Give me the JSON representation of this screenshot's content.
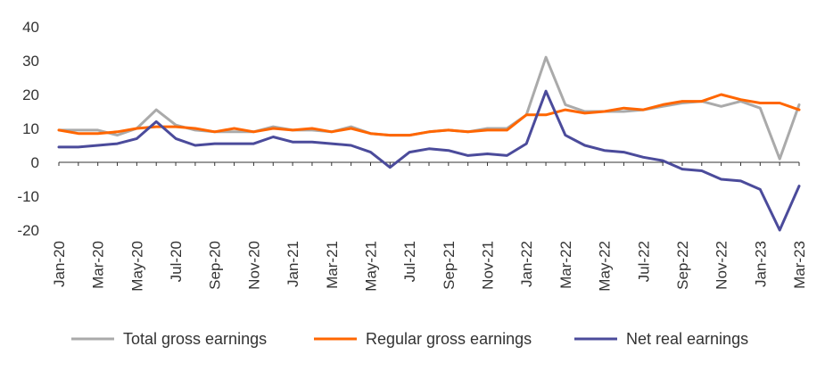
{
  "chart_data": {
    "type": "line",
    "title": "",
    "xlabel": "",
    "ylabel": "",
    "ylim": [
      -20,
      40
    ],
    "yticks": [
      40,
      30,
      20,
      10,
      0,
      -10,
      -20
    ],
    "grid": false,
    "legend_position": "bottom",
    "x": [
      "Jan-20",
      "Feb-20",
      "Mar-20",
      "Apr-20",
      "May-20",
      "Jun-20",
      "Jul-20",
      "Aug-20",
      "Sep-20",
      "Oct-20",
      "Nov-20",
      "Dec-20",
      "Jan-21",
      "Feb-21",
      "Mar-21",
      "Apr-21",
      "May-21",
      "Jun-21",
      "Jul-21",
      "Aug-21",
      "Sep-21",
      "Oct-21",
      "Nov-21",
      "Dec-21",
      "Jan-22",
      "Feb-22",
      "Mar-22",
      "Apr-22",
      "May-22",
      "Jun-22",
      "Jul-22",
      "Aug-22",
      "Sep-22",
      "Oct-22",
      "Nov-22",
      "Dec-22",
      "Jan-23",
      "Feb-23",
      "Mar-23"
    ],
    "xtick_labels": [
      "Jan-20",
      "Mar-20",
      "May-20",
      "Jul-20",
      "Sep-20",
      "Nov-20",
      "Jan-21",
      "Mar-21",
      "May-21",
      "Jul-21",
      "Sep-21",
      "Nov-21",
      "Jan-22",
      "Mar-22",
      "May-22",
      "Jul-22",
      "Sep-22",
      "Nov-22",
      "Jan-23",
      "Mar-23"
    ],
    "series": [
      {
        "name": "Total gross earnings",
        "color": "#aaaaaa",
        "values": [
          9.5,
          9.5,
          9.5,
          8,
          10,
          15.5,
          11,
          9.5,
          9,
          9,
          9,
          10.5,
          9.5,
          9.5,
          9,
          10.5,
          8.5,
          8,
          8,
          9,
          9.5,
          9,
          10,
          10,
          14,
          31,
          17,
          15,
          15,
          15,
          15.5,
          16.5,
          17.5,
          18,
          16.5,
          18,
          16,
          1,
          17
        ]
      },
      {
        "name": "Regular gross earnings",
        "color": "#ff6600",
        "values": [
          9.5,
          8.5,
          8.5,
          9,
          10,
          10.5,
          10.5,
          10,
          9,
          10,
          9,
          10,
          9.5,
          10,
          9,
          10,
          8.5,
          8,
          8,
          9,
          9.5,
          9,
          9.5,
          9.5,
          14,
          14,
          15.5,
          14.5,
          15,
          16,
          15.5,
          17,
          18,
          18,
          20,
          18.5,
          17.5,
          17.5,
          15.5
        ]
      },
      {
        "name": "Net real earnings",
        "color": "#4b4b9b",
        "values": [
          4.5,
          4.5,
          5,
          5.5,
          7,
          12,
          7,
          5,
          5.5,
          5.5,
          5.5,
          7.5,
          6,
          6,
          5.5,
          5,
          3,
          -1.5,
          3,
          4,
          3.5,
          2,
          2.5,
          2,
          5.5,
          21,
          8,
          5,
          3.5,
          3,
          1.5,
          0.5,
          -2,
          -2.5,
          -5,
          -5.5,
          -8,
          -20,
          -7
        ]
      }
    ]
  }
}
